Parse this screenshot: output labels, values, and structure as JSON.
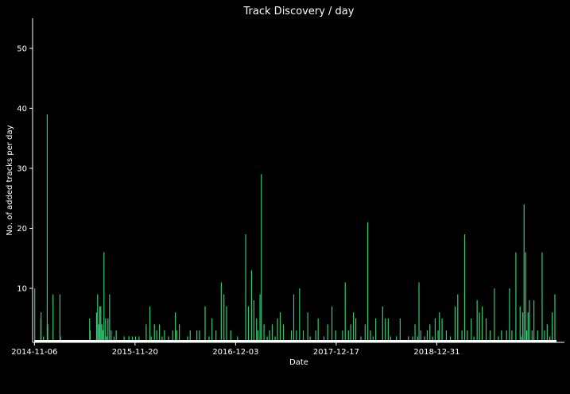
{
  "chart_data": {
    "type": "bar",
    "title": "Track Discovery / day",
    "xlabel": "Date",
    "ylabel": "No. of added tracks per day",
    "x_ticks": [
      "2014-11-06",
      "2015-11-20",
      "2016-12-03",
      "2017-12-17",
      "2018-12-31"
    ],
    "y_ticks": [
      10,
      20,
      30,
      40,
      50
    ],
    "xlim": [
      "2014-10-30",
      "2020-04-25"
    ],
    "ylim": [
      1,
      55
    ],
    "date_range": [
      "2014-11-06",
      "2020-03-26"
    ],
    "bar_color": "#2ecc71",
    "baseline_color": "#ffffff",
    "background": "#000000",
    "values": [
      [
        "2014-11-07",
        10
      ],
      [
        "2014-11-30",
        5
      ],
      [
        "2014-12-01",
        6
      ],
      [
        "2014-12-10",
        2
      ],
      [
        "2014-12-24",
        39
      ],
      [
        "2014-12-26",
        4
      ],
      [
        "2015-01-15",
        9
      ],
      [
        "2015-02-10",
        9
      ],
      [
        "2015-02-12",
        2
      ],
      [
        "2015-06-02",
        5
      ],
      [
        "2015-06-04",
        3
      ],
      [
        "2015-06-28",
        6
      ],
      [
        "2015-07-02",
        9
      ],
      [
        "2015-07-06",
        4
      ],
      [
        "2015-07-10",
        7
      ],
      [
        "2015-07-14",
        7
      ],
      [
        "2015-07-18",
        4
      ],
      [
        "2015-07-22",
        3
      ],
      [
        "2015-07-26",
        16
      ],
      [
        "2015-08-01",
        5
      ],
      [
        "2015-08-05",
        2
      ],
      [
        "2015-08-10",
        5
      ],
      [
        "2015-08-16",
        9
      ],
      [
        "2015-08-22",
        3
      ],
      [
        "2015-09-02",
        2
      ],
      [
        "2015-09-10",
        3
      ],
      [
        "2015-10-10",
        2
      ],
      [
        "2015-10-28",
        2
      ],
      [
        "2015-11-10",
        2
      ],
      [
        "2015-11-22",
        2
      ],
      [
        "2015-12-05",
        2
      ],
      [
        "2016-01-01",
        4
      ],
      [
        "2016-01-15",
        7
      ],
      [
        "2016-01-20",
        2
      ],
      [
        "2016-02-01",
        4
      ],
      [
        "2016-02-10",
        3
      ],
      [
        "2016-02-20",
        4
      ],
      [
        "2016-03-01",
        2
      ],
      [
        "2016-03-10",
        3
      ],
      [
        "2016-03-25",
        2
      ],
      [
        "2016-04-10",
        3
      ],
      [
        "2016-04-20",
        6
      ],
      [
        "2016-04-25",
        3
      ],
      [
        "2016-05-05",
        4
      ],
      [
        "2016-06-05",
        2
      ],
      [
        "2016-06-15",
        3
      ],
      [
        "2016-07-10",
        3
      ],
      [
        "2016-07-20",
        3
      ],
      [
        "2016-08-10",
        7
      ],
      [
        "2016-08-25",
        2
      ],
      [
        "2016-09-05",
        5
      ],
      [
        "2016-09-20",
        3
      ],
      [
        "2016-10-10",
        11
      ],
      [
        "2016-10-20",
        9
      ],
      [
        "2016-10-30",
        7
      ],
      [
        "2016-11-15",
        3
      ],
      [
        "2016-12-10",
        2
      ],
      [
        "2017-01-10",
        19
      ],
      [
        "2017-01-20",
        7
      ],
      [
        "2017-02-01",
        13
      ],
      [
        "2017-02-10",
        8
      ],
      [
        "2017-02-20",
        5
      ],
      [
        "2017-02-25",
        3
      ],
      [
        "2017-03-05",
        9
      ],
      [
        "2017-03-10",
        29
      ],
      [
        "2017-03-20",
        4
      ],
      [
        "2017-04-01",
        2
      ],
      [
        "2017-04-10",
        3
      ],
      [
        "2017-04-20",
        4
      ],
      [
        "2017-05-01",
        2
      ],
      [
        "2017-05-10",
        5
      ],
      [
        "2017-05-20",
        6
      ],
      [
        "2017-06-01",
        4
      ],
      [
        "2017-07-01",
        3
      ],
      [
        "2017-07-10",
        9
      ],
      [
        "2017-07-20",
        3
      ],
      [
        "2017-08-01",
        10
      ],
      [
        "2017-08-15",
        3
      ],
      [
        "2017-09-01",
        6
      ],
      [
        "2017-09-10",
        2
      ],
      [
        "2017-10-01",
        3
      ],
      [
        "2017-10-10",
        5
      ],
      [
        "2017-11-01",
        2
      ],
      [
        "2017-11-15",
        4
      ],
      [
        "2017-12-01",
        7
      ],
      [
        "2017-12-15",
        3
      ],
      [
        "2018-01-10",
        3
      ],
      [
        "2018-01-20",
        11
      ],
      [
        "2018-02-01",
        3
      ],
      [
        "2018-02-10",
        4
      ],
      [
        "2018-02-20",
        6
      ],
      [
        "2018-03-01",
        5
      ],
      [
        "2018-03-20",
        2
      ],
      [
        "2018-04-05",
        4
      ],
      [
        "2018-04-15",
        21
      ],
      [
        "2018-04-25",
        3
      ],
      [
        "2018-05-05",
        2
      ],
      [
        "2018-05-15",
        5
      ],
      [
        "2018-06-10",
        7
      ],
      [
        "2018-06-20",
        5
      ],
      [
        "2018-07-01",
        5
      ],
      [
        "2018-07-10",
        2
      ],
      [
        "2018-08-01",
        2
      ],
      [
        "2018-08-15",
        5
      ],
      [
        "2018-09-15",
        2
      ],
      [
        "2018-10-01",
        2
      ],
      [
        "2018-10-10",
        4
      ],
      [
        "2018-10-20",
        2
      ],
      [
        "2018-10-25",
        11
      ],
      [
        "2018-11-01",
        3
      ],
      [
        "2018-11-15",
        2
      ],
      [
        "2018-11-25",
        3
      ],
      [
        "2018-12-05",
        4
      ],
      [
        "2018-12-15",
        2
      ],
      [
        "2018-12-25",
        5
      ],
      [
        "2019-01-05",
        3
      ],
      [
        "2019-01-10",
        6
      ],
      [
        "2019-01-20",
        5
      ],
      [
        "2019-02-05",
        3
      ],
      [
        "2019-02-20",
        2
      ],
      [
        "2019-03-10",
        7
      ],
      [
        "2019-03-20",
        9
      ],
      [
        "2019-04-05",
        3
      ],
      [
        "2019-04-15",
        19
      ],
      [
        "2019-04-25",
        3
      ],
      [
        "2019-05-10",
        5
      ],
      [
        "2019-05-20",
        2
      ],
      [
        "2019-06-01",
        8
      ],
      [
        "2019-06-10",
        6
      ],
      [
        "2019-06-20",
        7
      ],
      [
        "2019-07-05",
        5
      ],
      [
        "2019-07-20",
        3
      ],
      [
        "2019-08-05",
        10
      ],
      [
        "2019-08-20",
        2
      ],
      [
        "2019-09-01",
        3
      ],
      [
        "2019-09-20",
        3
      ],
      [
        "2019-10-01",
        10
      ],
      [
        "2019-10-10",
        3
      ],
      [
        "2019-10-25",
        16
      ],
      [
        "2019-11-10",
        7
      ],
      [
        "2019-11-15",
        2
      ],
      [
        "2019-11-20",
        6
      ],
      [
        "2019-11-25",
        24
      ],
      [
        "2019-12-01",
        16
      ],
      [
        "2019-12-05",
        3
      ],
      [
        "2019-12-10",
        6
      ],
      [
        "2019-12-15",
        8
      ],
      [
        "2019-12-25",
        3
      ],
      [
        "2020-01-01",
        8
      ],
      [
        "2020-01-15",
        3
      ],
      [
        "2020-02-01",
        16
      ],
      [
        "2020-02-10",
        3
      ],
      [
        "2020-02-20",
        4
      ],
      [
        "2020-03-01",
        2
      ],
      [
        "2020-03-10",
        6
      ],
      [
        "2020-03-20",
        9
      ]
    ]
  }
}
